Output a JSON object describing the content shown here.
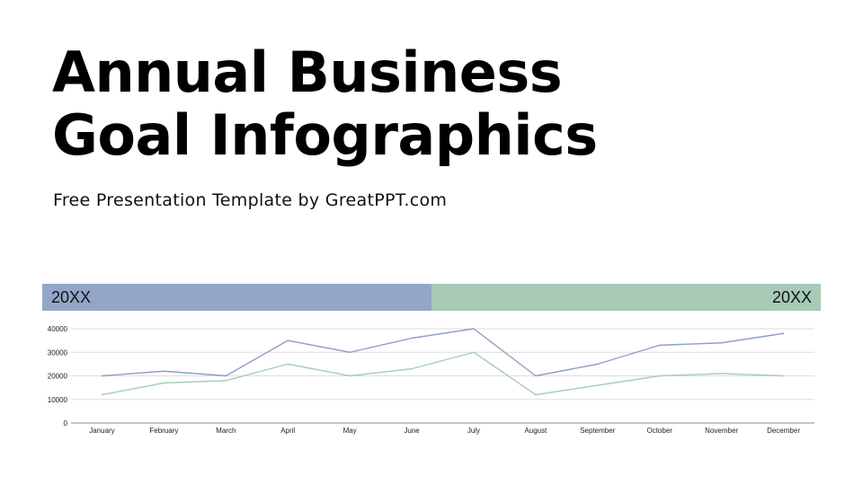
{
  "slide": {
    "title_line1": "Annual Business",
    "title_line2": "Goal Infographics",
    "subtitle": "Free Presentation Template by GreatPPT.com"
  },
  "bands": {
    "left_label": "20XX",
    "left_color": "#93a6c8",
    "right_label": "20XX",
    "right_color": "#a7cbb7"
  },
  "chart_data": {
    "type": "line",
    "categories": [
      "January",
      "February",
      "March",
      "April",
      "May",
      "June",
      "July",
      "August",
      "September",
      "October",
      "November",
      "December"
    ],
    "series": [
      {
        "values": [
          20000,
          22000,
          20000,
          35000,
          30000,
          36000,
          40000,
          20000,
          25000,
          33000,
          34000,
          38000
        ],
        "color": "#8e9fc6"
      },
      {
        "values": [
          12000,
          17000,
          18000,
          25000,
          20000,
          23000,
          30000,
          12000,
          16000,
          20000,
          21000,
          20000
        ],
        "color": "#a9cdbb"
      }
    ],
    "yticks": [
      0,
      10000,
      20000,
      30000,
      40000
    ],
    "ylim": [
      0,
      40000
    ],
    "grid": true,
    "legend": "none"
  }
}
